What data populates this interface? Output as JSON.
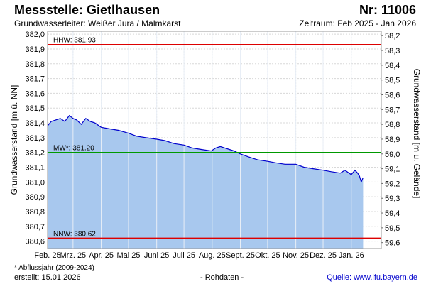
{
  "header": {
    "title": "Messstelle: Gietlhausen",
    "number": "Nr: 11006",
    "aquifer": "Grundwasserleiter:   Weißer Jura / Malmkarst",
    "period": "Zeitraum: Feb 2025 - Jan 2026"
  },
  "footer": {
    "footnote": "* Abflussjahr (2009-2024)",
    "created": "erstellt:  15.01.2026",
    "rawdata": "- Rohdaten -",
    "source": "Quelle:  www.lfu.bayern.de"
  },
  "colors": {
    "line": "#0000cc",
    "fill": "#a8c8ee",
    "hhw": "#dd0000",
    "nnw": "#dd0000",
    "mw": "#009900",
    "grid": "#d8d8d8"
  },
  "chart_data": {
    "type": "area",
    "ylabel_left": "Grundwasserstand [m ü. NN]",
    "ylabel_right": "Grundwasserstand [m u. Gelände]",
    "ylim_left": [
      380.55,
      382.02
    ],
    "ylim_right": [
      59.64,
      58.17
    ],
    "left_ticks": [
      "382,0",
      "381,9",
      "381,8",
      "381,7",
      "381,6",
      "381,5",
      "381,4",
      "381,3",
      "381,2",
      "381,1",
      "381,0",
      "380,9",
      "380,8",
      "380,7",
      "380,6"
    ],
    "right_ticks": [
      "58,2",
      "58,3",
      "58,4",
      "58,5",
      "58,6",
      "58,7",
      "58,8",
      "58,9",
      "59,0",
      "59,1",
      "59,2",
      "59,3",
      "59,4",
      "59,5",
      "59,6"
    ],
    "x_ticks": [
      "Feb. 25",
      "Mrz. 25",
      "Apr. 25",
      "Mai 25",
      "Juni 25",
      "Juli 25",
      "Aug. 25",
      "Sept. 25",
      "Okt. 25",
      "Nov. 25",
      "Dez. 25",
      "Jan. 26"
    ],
    "xlim": [
      "2025-02-01",
      "2026-02-03"
    ],
    "reference_lines": [
      {
        "label": "HHW: 381.93",
        "value": 381.93,
        "color": "#dd0000"
      },
      {
        "label": "MW*: 381.20",
        "value": 381.2,
        "color": "#009900"
      },
      {
        "label": "NNW: 380.62",
        "value": 380.62,
        "color": "#dd0000"
      }
    ],
    "series": [
      {
        "x": [
          "2025-02-01",
          "2025-02-05",
          "2025-02-10",
          "2025-02-15",
          "2025-02-20",
          "2025-02-25",
          "2025-03-01",
          "2025-03-05",
          "2025-03-10",
          "2025-03-15",
          "2025-03-20",
          "2025-03-25",
          "2025-04-01",
          "2025-04-10",
          "2025-04-20",
          "2025-05-01",
          "2025-05-10",
          "2025-05-20",
          "2025-06-01",
          "2025-06-10",
          "2025-06-20",
          "2025-07-01",
          "2025-07-10",
          "2025-07-20",
          "2025-07-31",
          "2025-08-05",
          "2025-08-10",
          "2025-08-15",
          "2025-08-20",
          "2025-08-25",
          "2025-09-01",
          "2025-09-10",
          "2025-09-20",
          "2025-10-01",
          "2025-10-10",
          "2025-10-20",
          "2025-11-01",
          "2025-11-10",
          "2025-11-20",
          "2025-12-01",
          "2025-12-10",
          "2025-12-20",
          "2025-12-25",
          "2026-01-01",
          "2026-01-05",
          "2026-01-08",
          "2026-01-10",
          "2026-01-12",
          "2026-01-14"
        ],
        "y": [
          381.38,
          381.41,
          381.42,
          381.43,
          381.41,
          381.45,
          381.43,
          381.42,
          381.39,
          381.43,
          381.41,
          381.4,
          381.37,
          381.36,
          381.35,
          381.33,
          381.31,
          381.3,
          381.29,
          381.28,
          381.26,
          381.25,
          381.23,
          381.22,
          381.21,
          381.23,
          381.24,
          381.23,
          381.22,
          381.21,
          381.19,
          381.17,
          381.15,
          381.14,
          381.13,
          381.12,
          381.12,
          381.1,
          381.09,
          381.08,
          381.07,
          381.06,
          381.08,
          381.05,
          381.08,
          381.06,
          381.04,
          381.0,
          381.03
        ]
      }
    ]
  }
}
